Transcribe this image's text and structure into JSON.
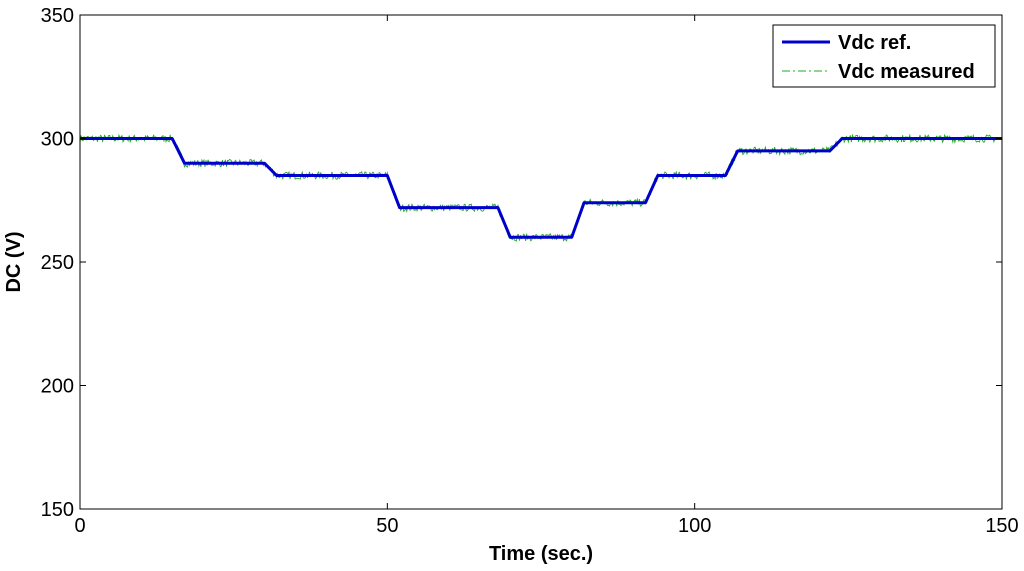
{
  "chart_data": {
    "type": "line",
    "title": "",
    "xlabel": "Time (sec.)",
    "ylabel": "DC (V)",
    "xlim": [
      0,
      150
    ],
    "ylim": [
      150,
      350
    ],
    "xticks": [
      0,
      50,
      100,
      150
    ],
    "yticks": [
      150,
      200,
      250,
      300,
      350
    ],
    "xtick_labels": [
      "0",
      "50",
      "100",
      "150"
    ],
    "ytick_labels": [
      "150",
      "200",
      "250",
      "300",
      "350"
    ],
    "grid": false,
    "legend_position": "top-right",
    "series": [
      {
        "name": "Vdc ref.",
        "color": "#0000cc",
        "style": "solid",
        "x": [
          0,
          15,
          17,
          30,
          32,
          50,
          52,
          68,
          70,
          80,
          82,
          92,
          94,
          105,
          107,
          122,
          124,
          150
        ],
        "y": [
          300,
          300,
          290,
          290,
          285,
          285,
          272,
          272,
          260,
          260,
          274,
          274,
          285,
          285,
          295,
          295,
          300,
          300
        ]
      },
      {
        "name": "Vdc measured",
        "color": "#22aa22",
        "style": "dash-dot",
        "noise_amplitude": 1.5,
        "x": [
          0,
          15,
          17,
          30,
          32,
          50,
          52,
          68,
          70,
          80,
          82,
          92,
          94,
          105,
          107,
          122,
          124,
          150
        ],
        "y": [
          300,
          300,
          290,
          290,
          285,
          285,
          272,
          272,
          260,
          260,
          274,
          274,
          285,
          285,
          295,
          295,
          300,
          300
        ]
      }
    ]
  }
}
